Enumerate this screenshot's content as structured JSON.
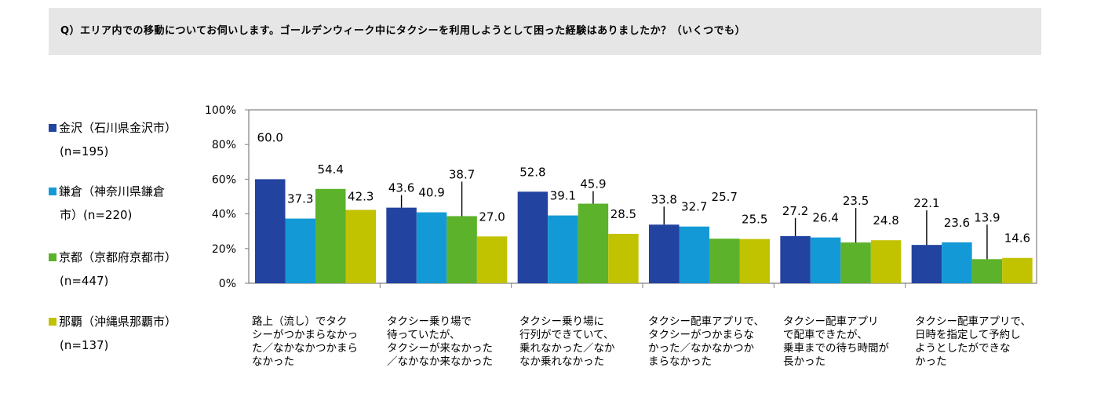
{
  "question": "Q）エリア内での移動についてお伺いします。ゴールデンウィーク中にタクシーを利用しようとして困った経験はありましたか？（いくつでも）",
  "colors": {
    "kanazawa": "#2343a0",
    "kamakura": "#139ad6",
    "kyoto": "#5cb22a",
    "naha": "#c1c200",
    "grid": "#7f7f7f",
    "axis": "#7f7f7f"
  },
  "legend": [
    {
      "name": "金沢（石川県金沢市）",
      "n": "(n=195)",
      "color": "#2343a0"
    },
    {
      "name": "鎌倉（神奈川県鎌倉",
      "n": "市）(n=220)",
      "color": "#139ad6"
    },
    {
      "name": "京都（京都府京都市）",
      "n": "(n=447)",
      "color": "#5cb22a"
    },
    {
      "name": "那覇（沖縄県那覇市）",
      "n": "(n=137)",
      "color": "#c1c200"
    }
  ],
  "chart_data": {
    "type": "bar",
    "title": "",
    "xlabel": "",
    "ylabel": "",
    "ylim": [
      0,
      100
    ],
    "yticks": [
      "0%",
      "20%",
      "40%",
      "60%",
      "80%",
      "100%"
    ],
    "categories": [
      "路上（流し）でタク\nシーがつかまらなかっ\nた／なかなかつかまら\nなかった",
      "タクシー乗り場で\n待っていたが、\nタクシーが来なかった\n／なかなか来なかった",
      "タクシー乗り場に\n行列ができていて、\n乗れなかった／なか\nなか乗れなかった",
      "タクシー配車アプリで、\nタクシーがつかまらな\nかった／なかなかつか\nまらなかった",
      "タクシー配車アプリ\nで配車できたが、\n乗車までの待ち時間が\n長かった",
      "タクシー配車アプリで、\n日時を指定して予約し\nようとしたができな\nかった"
    ],
    "series": [
      {
        "name": "金沢（石川県金沢市）(n=195)",
        "values": [
          60.0,
          43.6,
          52.8,
          33.8,
          27.2,
          22.1
        ]
      },
      {
        "name": "鎌倉（神奈川県鎌倉市）(n=220)",
        "values": [
          37.3,
          40.9,
          39.1,
          32.7,
          26.4,
          23.6
        ]
      },
      {
        "name": "京都（京都府京都市）(n=447)",
        "values": [
          54.4,
          38.7,
          45.9,
          25.7,
          23.5,
          13.9
        ]
      },
      {
        "name": "那覇（沖縄県那覇市）(n=137)",
        "values": [
          42.3,
          27.0,
          28.5,
          25.5,
          24.8,
          14.6
        ]
      }
    ],
    "data_labels": [
      [
        "60.0",
        "37.3",
        "54.4",
        "42.3"
      ],
      [
        "43.6",
        "40.9",
        "38.7",
        "27.0"
      ],
      [
        "52.8",
        "39.1",
        "45.9",
        "28.5"
      ],
      [
        "33.8",
        "32.7",
        "25.7",
        "25.5"
      ],
      [
        "27.2",
        "26.4",
        "23.5",
        "24.8"
      ],
      [
        "22.1",
        "23.6",
        "13.9",
        "14.6"
      ]
    ],
    "grid": false,
    "legend_position": "left"
  }
}
